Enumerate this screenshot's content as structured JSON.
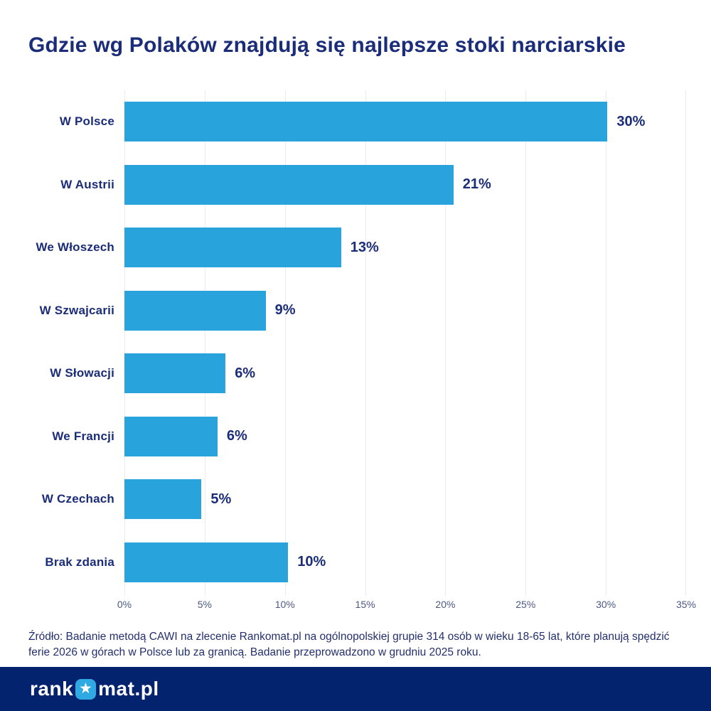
{
  "page": {
    "title": "Gdzie wg Polaków znajdują się najlepsze stoki narciarskie",
    "source_text": "Źródło: Badanie metodą CAWI na zlecenie Rankomat.pl na ogólnopolskiej grupie 314 osób w wieku 18-65 lat, które planują spędzić ferie 2026 w górach w Polsce lub za granicą. Badanie przeprowadzono w grudniu 2025 roku."
  },
  "chart_data": {
    "type": "bar",
    "orientation": "horizontal",
    "title": "Gdzie wg Polaków znajdują się najlepsze stoki narciarskie",
    "categories": [
      "W Polsce",
      "W Austrii",
      "We Włoszech",
      "W Szwajcarii",
      "W Słowacji",
      "We Francji",
      "W Czechach",
      "Brak zdania"
    ],
    "values": [
      30,
      21,
      13,
      9,
      6,
      6,
      5,
      10
    ],
    "value_labels": [
      "30%",
      "21%",
      "13%",
      "9%",
      "6%",
      "6%",
      "5%",
      "10%"
    ],
    "bar_percent_precise": [
      30.1,
      20.5,
      13.5,
      8.8,
      6.3,
      5.8,
      4.8,
      10.2
    ],
    "xlabel": "",
    "ylabel": "",
    "xlim": [
      0,
      35
    ],
    "x_ticks": [
      "0%",
      "5%",
      "10%",
      "15%",
      "20%",
      "25%",
      "30%",
      "35%"
    ],
    "grid": "vertical-light",
    "legend_position": "none",
    "colors": {
      "bar": "#29A3DC",
      "label_navy": "#1B2D78",
      "title_navy": "#1A2F7C",
      "tick": "#4C5886",
      "gridline": "#EAEAEF",
      "brand_bar_bg": "#04236F",
      "star_box": "#2FA9E1",
      "logo_text": "#FFFFFF"
    }
  },
  "brand": {
    "logo_prefix": "rank",
    "logo_suffix": "mat.pl",
    "star_icon_name": "star-icon"
  }
}
